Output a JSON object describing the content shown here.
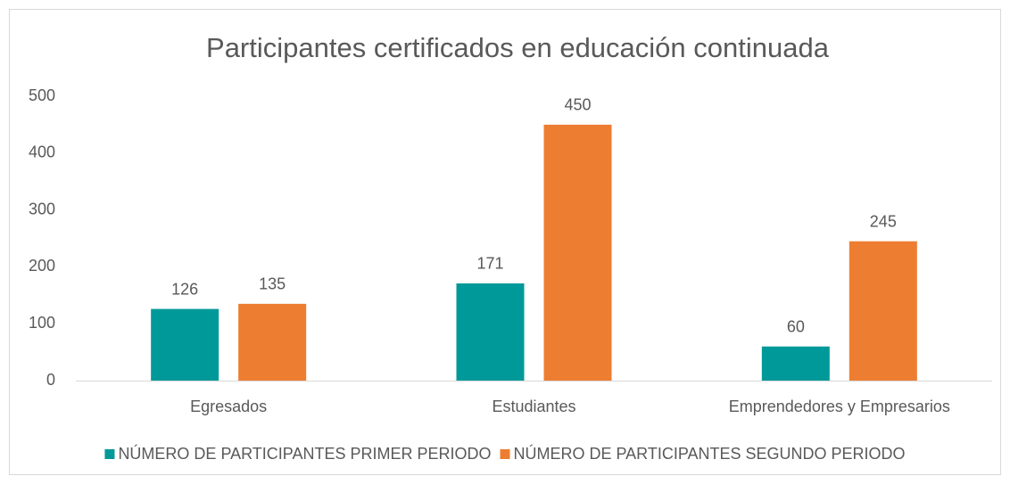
{
  "chart_data": {
    "type": "bar",
    "title": "Participantes certificados en educación continuada",
    "categories": [
      "Egresados",
      "Estudiantes",
      "Emprendedores y Empresarios"
    ],
    "series": [
      {
        "name": "NÚMERO DE PARTICIPANTES PRIMER PERIODO",
        "color": "#009999",
        "values": [
          126,
          171,
          60
        ]
      },
      {
        "name": "NÚMERO DE PARTICIPANTES SEGUNDO PERIODO",
        "color": "#ed7d31",
        "values": [
          135,
          450,
          245
        ]
      }
    ],
    "ylim": [
      0,
      500
    ],
    "yticks": [
      0,
      100,
      200,
      300,
      400,
      500
    ],
    "grid": false,
    "legend": "bottom"
  }
}
